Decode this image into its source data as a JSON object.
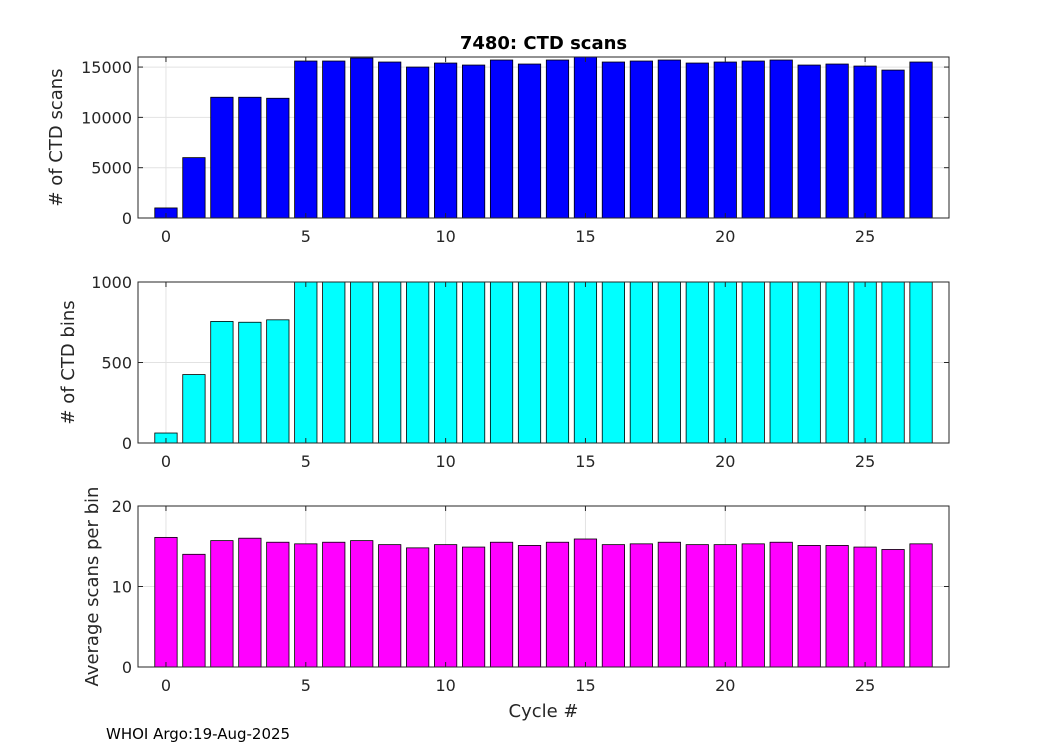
{
  "footer": {
    "text": "WHOI Argo:19-Aug-2025"
  },
  "chart_data": [
    {
      "type": "bar",
      "title": "7480: CTD scans",
      "xlabel": "",
      "ylabel": "# of CTD scans",
      "color": "#0000ff",
      "xlim": [
        -1,
        28
      ],
      "ylim": [
        0,
        16000
      ],
      "yticks": [
        0,
        5000,
        10000,
        15000
      ],
      "xticks": [
        0,
        5,
        10,
        15,
        20,
        25
      ],
      "grid": true,
      "x": [
        0,
        1,
        2,
        3,
        4,
        5,
        6,
        7,
        8,
        9,
        10,
        11,
        12,
        13,
        14,
        15,
        16,
        17,
        18,
        19,
        20,
        21,
        22,
        23,
        24,
        25,
        26,
        27
      ],
      "values": [
        1000,
        6000,
        12000,
        12000,
        11900,
        15600,
        15600,
        15900,
        15500,
        15000,
        15400,
        15200,
        15700,
        15300,
        15700,
        16000,
        15500,
        15600,
        15700,
        15400,
        15500,
        15600,
        15700,
        15200,
        15300,
        15100,
        14700,
        15500
      ]
    },
    {
      "type": "bar",
      "title": "",
      "xlabel": "",
      "ylabel": "# of CTD bins",
      "color": "#00ffff",
      "xlim": [
        -1,
        28
      ],
      "ylim": [
        0,
        1000
      ],
      "yticks": [
        0,
        500,
        1000
      ],
      "xticks": [
        0,
        5,
        10,
        15,
        20,
        25
      ],
      "grid": true,
      "x": [
        0,
        1,
        2,
        3,
        4,
        5,
        6,
        7,
        8,
        9,
        10,
        11,
        12,
        13,
        14,
        15,
        16,
        17,
        18,
        19,
        20,
        21,
        22,
        23,
        24,
        25,
        26,
        27
      ],
      "values": [
        62,
        425,
        755,
        750,
        765,
        1000,
        1000,
        1000,
        1000,
        1000,
        1000,
        1000,
        1000,
        1000,
        1000,
        1000,
        1000,
        1000,
        1000,
        1000,
        1000,
        1000,
        1000,
        1000,
        1000,
        1000,
        1000,
        1000
      ]
    },
    {
      "type": "bar",
      "title": "",
      "xlabel": "Cycle #",
      "ylabel": "Average scans per bin",
      "color": "#ff00ff",
      "xlim": [
        -1,
        28
      ],
      "ylim": [
        0,
        20
      ],
      "yticks": [
        0,
        10,
        20
      ],
      "xticks": [
        0,
        5,
        10,
        15,
        20,
        25
      ],
      "grid": true,
      "x": [
        0,
        1,
        2,
        3,
        4,
        5,
        6,
        7,
        8,
        9,
        10,
        11,
        12,
        13,
        14,
        15,
        16,
        17,
        18,
        19,
        20,
        21,
        22,
        23,
        24,
        25,
        26,
        27
      ],
      "values": [
        16.1,
        14.0,
        15.7,
        16.0,
        15.5,
        15.3,
        15.5,
        15.7,
        15.2,
        14.8,
        15.2,
        14.9,
        15.5,
        15.1,
        15.5,
        15.9,
        15.2,
        15.3,
        15.5,
        15.2,
        15.2,
        15.3,
        15.5,
        15.1,
        15.1,
        14.9,
        14.6,
        15.3
      ]
    }
  ]
}
